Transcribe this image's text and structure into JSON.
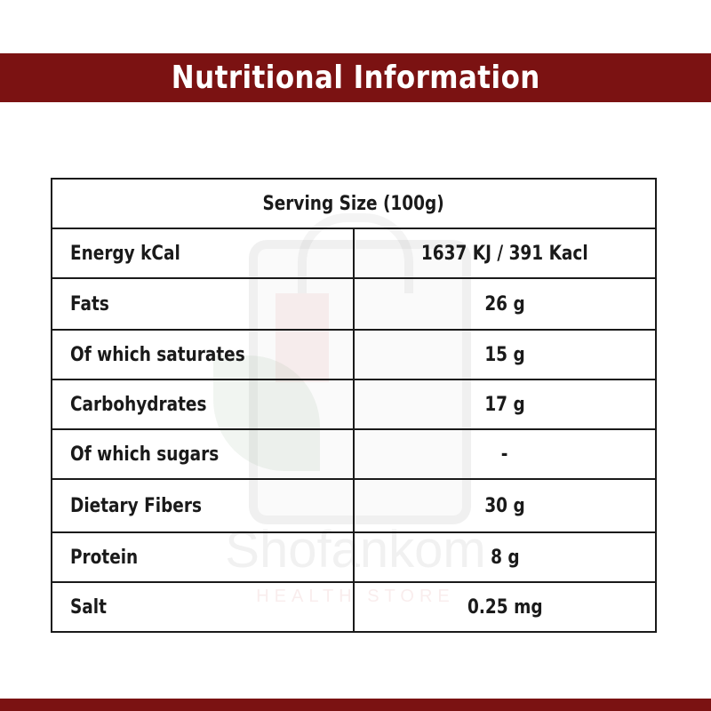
{
  "header": {
    "title": "Nutritional Information"
  },
  "table": {
    "serving_size": "Serving Size (100g)",
    "rows": [
      {
        "label": "Energy kCal",
        "value": "1637 KJ / 391 Kacl"
      },
      {
        "label": "Fats",
        "value": "26 g"
      },
      {
        "label": "Of which saturates",
        "value": "15 g"
      },
      {
        "label": "Carbohydrates",
        "value": "17 g"
      },
      {
        "label": "Of which sugars",
        "value": "-"
      },
      {
        "label": "Dietary Fibers",
        "value": "30 g"
      },
      {
        "label": "Protein",
        "value": "8 g"
      },
      {
        "label": "Salt",
        "value": "0.25 mg"
      }
    ]
  },
  "watermark": {
    "brand": "Shofankom",
    "tagline": "HEALTH STORE"
  },
  "colors": {
    "banner": "#7b1212",
    "serving_text": "#d41414",
    "border": "#1a1a1a"
  }
}
